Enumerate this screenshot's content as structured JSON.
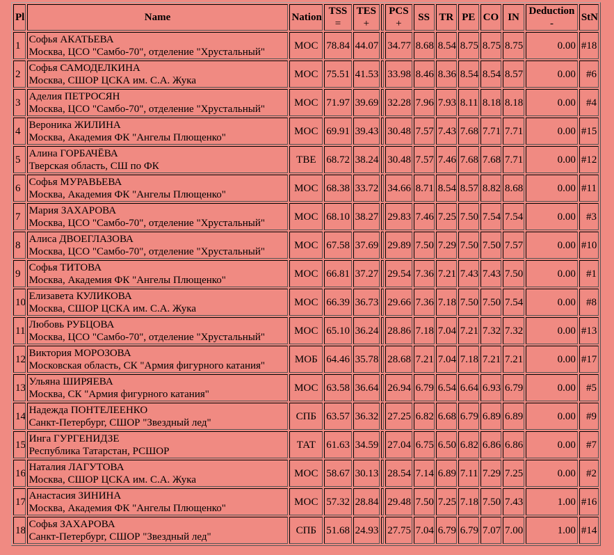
{
  "table": {
    "headers": [
      "Pl.",
      "Name",
      "Nation",
      {
        "label": "TSS",
        "sub": "="
      },
      {
        "label": "TES",
        "sub": "+"
      },
      null,
      {
        "label": "PCS",
        "sub": "+"
      },
      "SS",
      "TR",
      "PE",
      "CO",
      "IN",
      {
        "label": "Deduction",
        "sub": "-"
      },
      "StN."
    ],
    "rows": [
      [
        1,
        "Софья АКАТЬЕВА",
        "Москва, ЦСО \"Самбо-70\", отделение \"Хрустальный\"",
        "МОС",
        "78.84",
        "44.07",
        "34.77",
        "8.68",
        "8.54",
        "8.75",
        "8.75",
        "8.75",
        "0.00",
        "#18"
      ],
      [
        2,
        "Софья САМОДЕЛКИНА",
        "Москва, СШОР ЦСКА им. С.А. Жука",
        "МОС",
        "75.51",
        "41.53",
        "33.98",
        "8.46",
        "8.36",
        "8.54",
        "8.54",
        "8.57",
        "0.00",
        "#6"
      ],
      [
        3,
        "Аделия ПЕТРОСЯН",
        "Москва, ЦСО \"Самбо-70\", отделение \"Хрустальный\"",
        "МОС",
        "71.97",
        "39.69",
        "32.28",
        "7.96",
        "7.93",
        "8.11",
        "8.18",
        "8.18",
        "0.00",
        "#4"
      ],
      [
        4,
        "Вероника ЖИЛИНА",
        "Москва, Академия ФК \"Ангелы Плющенко\"",
        "МОС",
        "69.91",
        "39.43",
        "30.48",
        "7.57",
        "7.43",
        "7.68",
        "7.71",
        "7.71",
        "0.00",
        "#15"
      ],
      [
        5,
        "Алина ГОРБАЧЁВА",
        "Тверская область, СШ по ФК",
        "ТВЕ",
        "68.72",
        "38.24",
        "30.48",
        "7.57",
        "7.46",
        "7.68",
        "7.68",
        "7.71",
        "0.00",
        "#12"
      ],
      [
        6,
        "Софья МУРАВЬЕВА",
        "Москва, Академия ФК \"Ангелы Плющенко\"",
        "МОС",
        "68.38",
        "33.72",
        "34.66",
        "8.71",
        "8.54",
        "8.57",
        "8.82",
        "8.68",
        "0.00",
        "#11"
      ],
      [
        7,
        "Мария ЗАХАРОВА",
        "Москва, ЦСО \"Самбо-70\", отделение \"Хрустальный\"",
        "МОС",
        "68.10",
        "38.27",
        "29.83",
        "7.46",
        "7.25",
        "7.50",
        "7.54",
        "7.54",
        "0.00",
        "#3"
      ],
      [
        8,
        "Алиса ДВОЕГЛАЗОВА",
        "Москва, ЦСО \"Самбо-70\", отделение \"Хрустальный\"",
        "МОС",
        "67.58",
        "37.69",
        "29.89",
        "7.50",
        "7.29",
        "7.50",
        "7.50",
        "7.57",
        "0.00",
        "#10"
      ],
      [
        9,
        "Софья ТИТОВА",
        "Москва, Академия ФК \"Ангелы Плющенко\"",
        "МОС",
        "66.81",
        "37.27",
        "29.54",
        "7.36",
        "7.21",
        "7.43",
        "7.43",
        "7.50",
        "0.00",
        "#1"
      ],
      [
        10,
        "Елизавета КУЛИКОВА",
        "Москва, СШОР ЦСКА им. С.А. Жука",
        "МОС",
        "66.39",
        "36.73",
        "29.66",
        "7.36",
        "7.18",
        "7.50",
        "7.50",
        "7.54",
        "0.00",
        "#8"
      ],
      [
        11,
        "Любовь РУБЦОВА",
        "Москва, ЦСО \"Самбо-70\", отделение \"Хрустальный\"",
        "МОС",
        "65.10",
        "36.24",
        "28.86",
        "7.18",
        "7.04",
        "7.21",
        "7.32",
        "7.32",
        "0.00",
        "#13"
      ],
      [
        12,
        "Виктория МОРОЗОВА",
        "Московская область, СК \"Армия фигурного катания\"",
        "МОБ",
        "64.46",
        "35.78",
        "28.68",
        "7.21",
        "7.04",
        "7.18",
        "7.21",
        "7.21",
        "0.00",
        "#17"
      ],
      [
        13,
        "Ульяна ШИРЯЕВА",
        "Москва, СК \"Армия фигурного катания\"",
        "МОС",
        "63.58",
        "36.64",
        "26.94",
        "6.79",
        "6.54",
        "6.64",
        "6.93",
        "6.79",
        "0.00",
        "#5"
      ],
      [
        14,
        "Надежда ПОНТЕЛЕЕНКО",
        "Санкт-Петербург, СШОР \"Звездный лед\"",
        "СПБ",
        "63.57",
        "36.32",
        "27.25",
        "6.82",
        "6.68",
        "6.79",
        "6.89",
        "6.89",
        "0.00",
        "#9"
      ],
      [
        15,
        "Инга ГУРГЕНИДЗЕ",
        "Республика Татарстан, РСШОР",
        "ТАТ",
        "61.63",
        "34.59",
        "27.04",
        "6.75",
        "6.50",
        "6.82",
        "6.86",
        "6.86",
        "0.00",
        "#7"
      ],
      [
        16,
        "Наталия ЛАГУТОВА",
        "Москва, СШОР ЦСКА им. С.А. Жука",
        "МОС",
        "58.67",
        "30.13",
        "28.54",
        "7.14",
        "6.89",
        "7.11",
        "7.29",
        "7.25",
        "0.00",
        "#2"
      ],
      [
        17,
        "Анастасия ЗИНИНА",
        "Москва, Академия ФК \"Ангелы Плющенко\"",
        "МОС",
        "57.32",
        "28.84",
        "29.48",
        "7.50",
        "7.25",
        "7.18",
        "7.50",
        "7.43",
        "1.00",
        "#16"
      ],
      [
        18,
        "Софья ЗАХАРОВА",
        "Санкт-Петербург, СШОР \"Звездный лед\"",
        "СПБ",
        "51.68",
        "24.93",
        "27.75",
        "7.04",
        "6.79",
        "6.79",
        "7.07",
        "7.00",
        "1.00",
        "#14"
      ]
    ]
  }
}
